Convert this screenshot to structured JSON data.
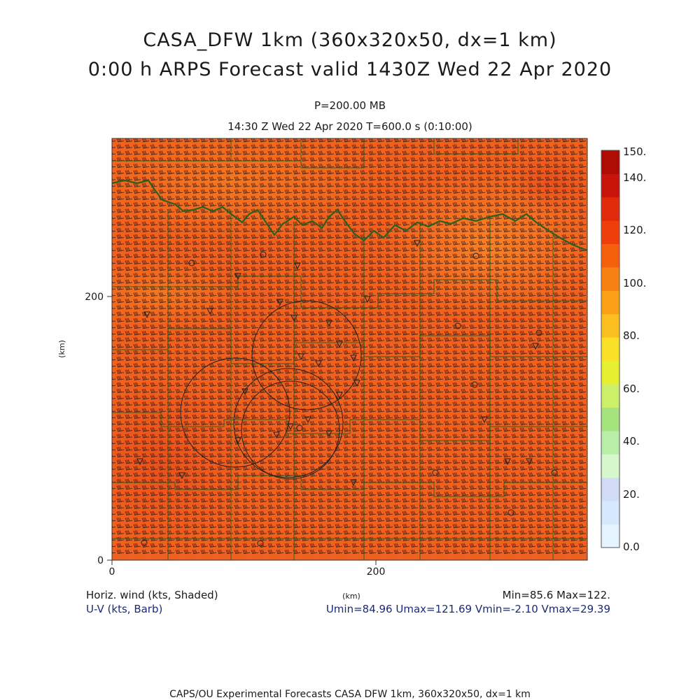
{
  "title": {
    "line1": "CASA_DFW 1km (360x320x50, dx=1 km)",
    "line2": "0:00 h ARPS Forecast valid 1430Z Wed 22 Apr 2020"
  },
  "subtitle": {
    "level": "P=200.00 MB",
    "time": "14:30 Z Wed 22 Apr 2020    T=600.0 s (0:10:00)"
  },
  "axes": {
    "x_ticks": [
      "0",
      "200"
    ],
    "y_ticks": [
      "0",
      "200"
    ],
    "x_label": "(km)",
    "y_label": "(km)",
    "x_range_km": [
      0,
      360
    ],
    "y_range_km": [
      0,
      320
    ]
  },
  "colorbar": {
    "labels": [
      "150.",
      "140.",
      "120.",
      "100.",
      "80.",
      "60.",
      "40.",
      "20.",
      "0.0"
    ],
    "range": [
      0,
      150
    ],
    "colors": [
      "#e6f4ff",
      "#d5e8fd",
      "#d2dcf7",
      "#d6f6cc",
      "#b9efa8",
      "#a4e37e",
      "#cdf06a",
      "#e6f030",
      "#fbe028",
      "#fbc020",
      "#fba016",
      "#f98012",
      "#f6600c",
      "#f03e0a",
      "#e02a0a",
      "#c8140a",
      "#b00c06"
    ]
  },
  "field": {
    "base_color": "#f0601e",
    "land_line_color": "#2a6020",
    "radar_circle_color": "#222222"
  },
  "legend": {
    "variable1": "Horiz. wind (kts, Shaded)",
    "variable2": "U-V (kts, Barb)",
    "minmax": "Min=85.6  Max=122.",
    "uv_stats": "Umin=84.96  Umax=121.69  Vmin=-2.10  Vmax=29.39"
  },
  "footer": "CAPS/OU Experimental Forecasts  CASA DFW 1km, 360x320x50, dx=1 km"
}
